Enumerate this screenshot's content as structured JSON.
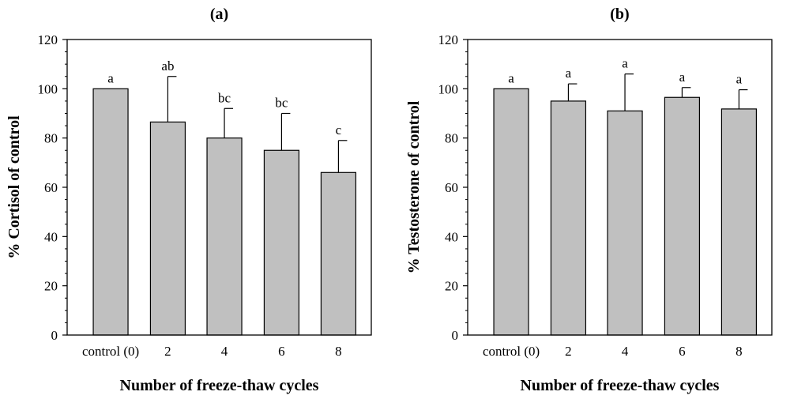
{
  "chart_data": [
    {
      "type": "bar",
      "title": "(a)",
      "xlabel": "Number of freeze-thaw cycles",
      "ylabel": "% Cortisol of control",
      "categories": [
        "control (0)",
        "2",
        "4",
        "6",
        "8"
      ],
      "values": [
        100,
        86.5,
        80,
        75,
        66
      ],
      "errors": [
        0,
        18.5,
        12,
        15,
        13
      ],
      "significance_labels": [
        "a",
        "ab",
        "bc",
        "bc",
        "c"
      ],
      "ylim": [
        0,
        120
      ],
      "yticks": [
        0,
        20,
        40,
        60,
        80,
        100,
        120
      ],
      "grid": false,
      "bar_color": "#c0c0c0"
    },
    {
      "type": "bar",
      "title": "(b)",
      "xlabel": "Number of freeze-thaw cycles",
      "ylabel": "% Testosterone of control",
      "categories": [
        "control (0)",
        "2",
        "4",
        "6",
        "8"
      ],
      "values": [
        100,
        95,
        91,
        96.5,
        91.8
      ],
      "errors": [
        0,
        7,
        15,
        4,
        7.8
      ],
      "significance_labels": [
        "a",
        "a",
        "a",
        "a",
        "a"
      ],
      "ylim": [
        0,
        120
      ],
      "yticks": [
        0,
        20,
        40,
        60,
        80,
        100,
        120
      ],
      "grid": false,
      "bar_color": "#c0c0c0"
    }
  ]
}
